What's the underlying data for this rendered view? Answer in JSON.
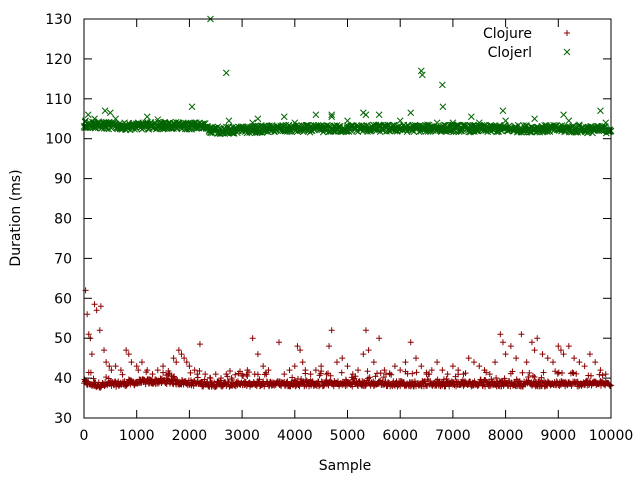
{
  "chart_data": {
    "type": "scatter",
    "xlabel": "Sample",
    "ylabel": "Duration (ms)",
    "xlim": [
      0,
      10000
    ],
    "ylim": [
      30,
      130
    ],
    "xticks": [
      0,
      1000,
      2000,
      3000,
      4000,
      5000,
      6000,
      7000,
      8000,
      9000,
      10000
    ],
    "yticks": [
      30,
      40,
      50,
      60,
      70,
      80,
      90,
      100,
      110,
      120,
      130
    ],
    "grid": false,
    "legend_position": "top-right",
    "series": [
      {
        "name": "Clojure",
        "marker": "plus",
        "color": "#8b0000",
        "baseline_points": [
          [
            0,
            38.8
          ],
          [
            100,
            38.4
          ],
          [
            200,
            38.2
          ],
          [
            300,
            38.1
          ],
          [
            400,
            38.1
          ],
          [
            500,
            38.2
          ],
          [
            600,
            38.3
          ],
          [
            700,
            38.4
          ],
          [
            800,
            38.5
          ],
          [
            900,
            38.6
          ],
          [
            1000,
            38.7
          ],
          [
            1100,
            38.8
          ],
          [
            1200,
            38.9
          ],
          [
            1300,
            38.9
          ],
          [
            1400,
            39.0
          ],
          [
            1500,
            39.0
          ],
          [
            1600,
            39.0
          ],
          [
            1700,
            38.9
          ],
          [
            1800,
            38.8
          ],
          [
            1900,
            38.7
          ],
          [
            2000,
            38.6
          ],
          [
            2100,
            38.5
          ],
          [
            2200,
            38.4
          ],
          [
            2300,
            38.3
          ],
          [
            2400,
            38.3
          ],
          [
            2500,
            38.3
          ],
          [
            2600,
            38.3
          ],
          [
            2700,
            38.3
          ],
          [
            2800,
            38.3
          ],
          [
            2900,
            38.3
          ],
          [
            3000,
            38.3
          ],
          [
            3200,
            38.3
          ],
          [
            3400,
            38.4
          ],
          [
            3600,
            38.4
          ],
          [
            3800,
            38.4
          ],
          [
            4000,
            38.4
          ],
          [
            4200,
            38.4
          ],
          [
            4400,
            38.4
          ],
          [
            4600,
            38.4
          ],
          [
            4800,
            38.4
          ],
          [
            5000,
            38.4
          ],
          [
            5200,
            38.4
          ],
          [
            5400,
            38.4
          ],
          [
            5600,
            38.4
          ],
          [
            5800,
            38.4
          ],
          [
            6000,
            38.4
          ],
          [
            6200,
            38.4
          ],
          [
            6400,
            38.4
          ],
          [
            6600,
            38.4
          ],
          [
            6800,
            38.4
          ],
          [
            7000,
            38.4
          ],
          [
            7200,
            38.4
          ],
          [
            7400,
            38.4
          ],
          [
            7600,
            38.4
          ],
          [
            7800,
            38.4
          ],
          [
            8000,
            38.4
          ],
          [
            8200,
            38.4
          ],
          [
            8400,
            38.4
          ],
          [
            8600,
            38.4
          ],
          [
            8800,
            38.4
          ],
          [
            9000,
            38.4
          ],
          [
            9200,
            38.4
          ],
          [
            9400,
            38.4
          ],
          [
            9600,
            38.4
          ],
          [
            9800,
            38.4
          ],
          [
            10000,
            38.4
          ]
        ],
        "outliers": [
          [
            30,
            62
          ],
          [
            60,
            56
          ],
          [
            90,
            51
          ],
          [
            120,
            50
          ],
          [
            150,
            46
          ],
          [
            200,
            58.5
          ],
          [
            240,
            57
          ],
          [
            300,
            52
          ],
          [
            320,
            58
          ],
          [
            380,
            47
          ],
          [
            420,
            44
          ],
          [
            480,
            43
          ],
          [
            520,
            42
          ],
          [
            600,
            43
          ],
          [
            700,
            42
          ],
          [
            800,
            47
          ],
          [
            850,
            46
          ],
          [
            900,
            44
          ],
          [
            1000,
            43
          ],
          [
            1100,
            44
          ],
          [
            1200,
            42
          ],
          [
            1300,
            41
          ],
          [
            1400,
            42
          ],
          [
            1500,
            43
          ],
          [
            1600,
            41
          ],
          [
            1700,
            45
          ],
          [
            1750,
            44
          ],
          [
            1800,
            47
          ],
          [
            1850,
            46
          ],
          [
            1900,
            45
          ],
          [
            1950,
            44
          ],
          [
            2000,
            43
          ],
          [
            2100,
            42
          ],
          [
            2150,
            41
          ],
          [
            2200,
            48.5
          ],
          [
            2300,
            41
          ],
          [
            2400,
            40
          ],
          [
            2500,
            41
          ],
          [
            2600,
            40
          ],
          [
            2700,
            41
          ],
          [
            2800,
            40
          ],
          [
            3000,
            41
          ],
          [
            3100,
            42
          ],
          [
            3200,
            50
          ],
          [
            3300,
            46
          ],
          [
            3400,
            43
          ],
          [
            3500,
            42
          ],
          [
            3700,
            49
          ],
          [
            3800,
            41
          ],
          [
            3900,
            42
          ],
          [
            4000,
            43
          ],
          [
            4050,
            48
          ],
          [
            4100,
            47
          ],
          [
            4150,
            44
          ],
          [
            4200,
            42
          ],
          [
            4300,
            41
          ],
          [
            4400,
            42
          ],
          [
            4500,
            43
          ],
          [
            4600,
            41
          ],
          [
            4650,
            48
          ],
          [
            4700,
            52
          ],
          [
            4800,
            44
          ],
          [
            4900,
            45
          ],
          [
            5000,
            43
          ],
          [
            5100,
            41
          ],
          [
            5200,
            42
          ],
          [
            5300,
            46
          ],
          [
            5350,
            52
          ],
          [
            5400,
            47
          ],
          [
            5500,
            44
          ],
          [
            5600,
            50
          ],
          [
            5700,
            42
          ],
          [
            5800,
            41
          ],
          [
            5900,
            43
          ],
          [
            6000,
            42
          ],
          [
            6100,
            44
          ],
          [
            6200,
            49
          ],
          [
            6300,
            45
          ],
          [
            6400,
            43
          ],
          [
            6500,
            41
          ],
          [
            6600,
            42
          ],
          [
            6700,
            44
          ],
          [
            6800,
            42
          ],
          [
            6900,
            41
          ],
          [
            7000,
            43
          ],
          [
            7100,
            42
          ],
          [
            7200,
            41
          ],
          [
            7300,
            45
          ],
          [
            7400,
            44
          ],
          [
            7500,
            43
          ],
          [
            7600,
            42
          ],
          [
            7700,
            41
          ],
          [
            7800,
            44
          ],
          [
            7900,
            51
          ],
          [
            7950,
            49
          ],
          [
            8000,
            46
          ],
          [
            8100,
            48
          ],
          [
            8200,
            45
          ],
          [
            8300,
            51
          ],
          [
            8400,
            44
          ],
          [
            8500,
            49
          ],
          [
            8550,
            47
          ],
          [
            8600,
            50
          ],
          [
            8700,
            46
          ],
          [
            8800,
            45
          ],
          [
            8900,
            44
          ],
          [
            9000,
            48
          ],
          [
            9050,
            47
          ],
          [
            9100,
            46
          ],
          [
            9200,
            48
          ],
          [
            9300,
            45
          ],
          [
            9400,
            44
          ],
          [
            9500,
            43
          ],
          [
            9600,
            46
          ],
          [
            9700,
            44
          ],
          [
            9800,
            42
          ],
          [
            9900,
            41
          ]
        ]
      },
      {
        "name": "Clojerl",
        "marker": "cross",
        "color": "#006400",
        "baseline_points": [
          [
            0,
            103.5
          ],
          [
            200,
            103.5
          ],
          [
            400,
            103.3
          ],
          [
            600,
            103.2
          ],
          [
            800,
            103.1
          ],
          [
            1000,
            103.1
          ],
          [
            1200,
            103.2
          ],
          [
            1400,
            103.3
          ],
          [
            1600,
            103.3
          ],
          [
            1800,
            103.2
          ],
          [
            2000,
            103.2
          ],
          [
            2200,
            103.2
          ],
          [
            2350,
            103.0
          ],
          [
            2400,
            102.2
          ],
          [
            2600,
            102.1
          ],
          [
            2800,
            102.1
          ],
          [
            3000,
            102.2
          ],
          [
            3200,
            102.3
          ],
          [
            3400,
            102.4
          ],
          [
            3600,
            102.5
          ],
          [
            3800,
            102.5
          ],
          [
            4000,
            102.5
          ],
          [
            4200,
            102.5
          ],
          [
            4400,
            102.5
          ],
          [
            4600,
            102.5
          ],
          [
            4800,
            102.5
          ],
          [
            5000,
            102.5
          ],
          [
            5200,
            102.6
          ],
          [
            5400,
            102.6
          ],
          [
            5600,
            102.6
          ],
          [
            5800,
            102.6
          ],
          [
            6000,
            102.6
          ],
          [
            6200,
            102.6
          ],
          [
            6400,
            102.6
          ],
          [
            6600,
            102.6
          ],
          [
            6800,
            102.6
          ],
          [
            7000,
            102.6
          ],
          [
            7200,
            102.6
          ],
          [
            7400,
            102.5
          ],
          [
            7600,
            102.5
          ],
          [
            7800,
            102.5
          ],
          [
            8000,
            102.5
          ],
          [
            8200,
            102.5
          ],
          [
            8400,
            102.5
          ],
          [
            8600,
            102.5
          ],
          [
            8800,
            102.5
          ],
          [
            9000,
            102.5
          ],
          [
            9200,
            102.4
          ],
          [
            9400,
            102.4
          ],
          [
            9600,
            102.3
          ],
          [
            9800,
            102.3
          ],
          [
            10000,
            102.3
          ]
        ],
        "outliers": [
          [
            30,
            104.5
          ],
          [
            80,
            106
          ],
          [
            200,
            105
          ],
          [
            400,
            107
          ],
          [
            500,
            106.5
          ],
          [
            600,
            105
          ],
          [
            1200,
            105.5
          ],
          [
            1400,
            104.8
          ],
          [
            2050,
            108
          ],
          [
            2400,
            130
          ],
          [
            2700,
            116.5
          ],
          [
            2750,
            104.5
          ],
          [
            3200,
            104
          ],
          [
            3300,
            105
          ],
          [
            3800,
            105.5
          ],
          [
            4000,
            104
          ],
          [
            4400,
            106
          ],
          [
            4700,
            106
          ],
          [
            4700,
            105.5
          ],
          [
            5000,
            104.5
          ],
          [
            5300,
            106.5
          ],
          [
            5350,
            106
          ],
          [
            5600,
            106
          ],
          [
            6000,
            104.5
          ],
          [
            6200,
            106.5
          ],
          [
            6400,
            117
          ],
          [
            6420,
            116
          ],
          [
            6700,
            104
          ],
          [
            6800,
            113.5
          ],
          [
            6810,
            108
          ],
          [
            7000,
            104
          ],
          [
            7350,
            105.5
          ],
          [
            7500,
            104
          ],
          [
            7950,
            107
          ],
          [
            8000,
            104.5
          ],
          [
            8550,
            105
          ],
          [
            9100,
            106
          ],
          [
            9200,
            104.5
          ],
          [
            9400,
            103.5
          ],
          [
            9800,
            107
          ],
          [
            9900,
            104
          ]
        ]
      }
    ]
  }
}
